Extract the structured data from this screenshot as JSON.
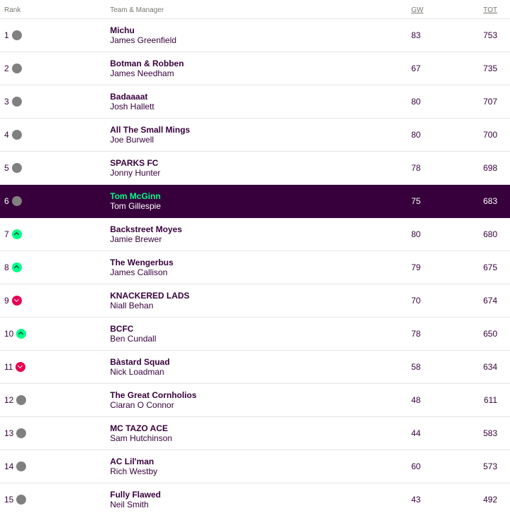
{
  "headers": {
    "rank": "Rank",
    "team_manager": "Team & Manager",
    "gw": "GW",
    "tot": "TOT"
  },
  "colors": {
    "brand_purple": "#37003c",
    "up_green": "#00ff87",
    "down_pink": "#e90052",
    "same_grey": "#808080"
  },
  "rows": [
    {
      "rank": "1",
      "movement": "same",
      "team": "Michu",
      "manager": "James Greenfield",
      "gw": "83",
      "tot": "753"
    },
    {
      "rank": "2",
      "movement": "same",
      "team": "Botman & Robben",
      "manager": "James Needham",
      "gw": "67",
      "tot": "735"
    },
    {
      "rank": "3",
      "movement": "same",
      "team": "Badaaaat",
      "manager": "Josh Hallett",
      "gw": "80",
      "tot": "707"
    },
    {
      "rank": "4",
      "movement": "same",
      "team": "All The Small Mings",
      "manager": "Joe Burwell",
      "gw": "80",
      "tot": "700"
    },
    {
      "rank": "5",
      "movement": "same",
      "team": "SPARKS FC",
      "manager": "Jonny Hunter",
      "gw": "78",
      "tot": "698"
    },
    {
      "rank": "6",
      "movement": "same",
      "team": "Tom McGinn",
      "manager": "Tom Gillespie",
      "gw": "75",
      "tot": "683",
      "highlight": true
    },
    {
      "rank": "7",
      "movement": "up",
      "team": "Backstreet Moyes",
      "manager": "Jamie Brewer",
      "gw": "80",
      "tot": "680"
    },
    {
      "rank": "8",
      "movement": "up",
      "team": "The Wengerbus",
      "manager": "James Callison",
      "gw": "79",
      "tot": "675"
    },
    {
      "rank": "9",
      "movement": "down",
      "team": "KNACKERED LADS",
      "manager": "Niall Behan",
      "gw": "70",
      "tot": "674"
    },
    {
      "rank": "10",
      "movement": "up",
      "team": "BCFC",
      "manager": "Ben Cundall",
      "gw": "78",
      "tot": "650"
    },
    {
      "rank": "11",
      "movement": "down",
      "team": "Bàstard Squad",
      "manager": "Nick Loadman",
      "gw": "58",
      "tot": "634"
    },
    {
      "rank": "12",
      "movement": "same",
      "team": "The Great Cornholios",
      "manager": "Ciaran O Connor",
      "gw": "48",
      "tot": "611"
    },
    {
      "rank": "13",
      "movement": "same",
      "team": "MC TAZO ACE",
      "manager": "Sam Hutchinson",
      "gw": "44",
      "tot": "583"
    },
    {
      "rank": "14",
      "movement": "same",
      "team": "AC Lil'man",
      "manager": "Rich Westby",
      "gw": "60",
      "tot": "573"
    },
    {
      "rank": "15",
      "movement": "same",
      "team": "Fully Flawed",
      "manager": "Neil Smith",
      "gw": "43",
      "tot": "492"
    }
  ]
}
